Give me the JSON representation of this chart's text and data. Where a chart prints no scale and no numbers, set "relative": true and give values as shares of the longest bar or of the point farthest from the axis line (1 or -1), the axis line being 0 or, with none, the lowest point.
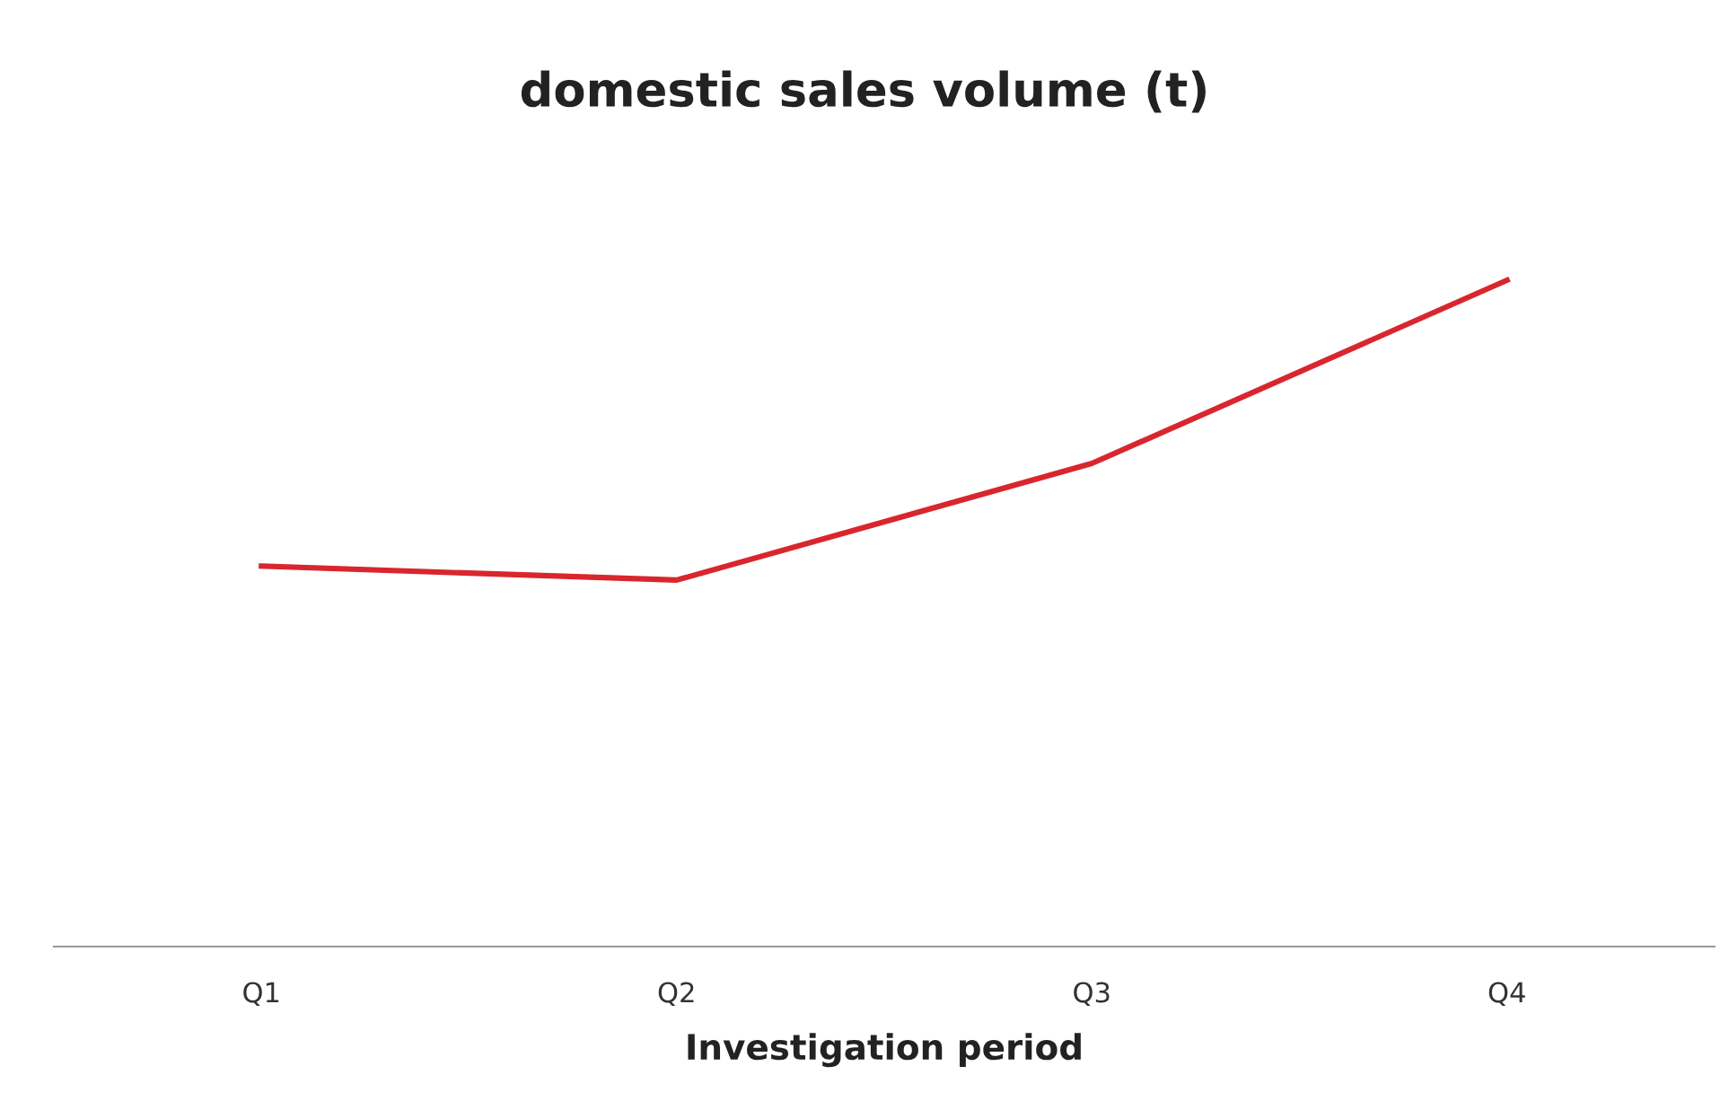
{
  "chart_data": {
    "type": "line",
    "title": "domestic sales volume (t)",
    "xlabel": "Investigation period",
    "categories": [
      "Q1",
      "Q2",
      "Q3",
      "Q4"
    ],
    "series": [
      {
        "color": "#d9262e",
        "values": [
          0.571,
          0.55,
          0.725,
          1
        ]
      }
    ],
    "relative": true,
    "grid": false,
    "legend": false,
    "marker": "none",
    "line_style": "solid"
  }
}
